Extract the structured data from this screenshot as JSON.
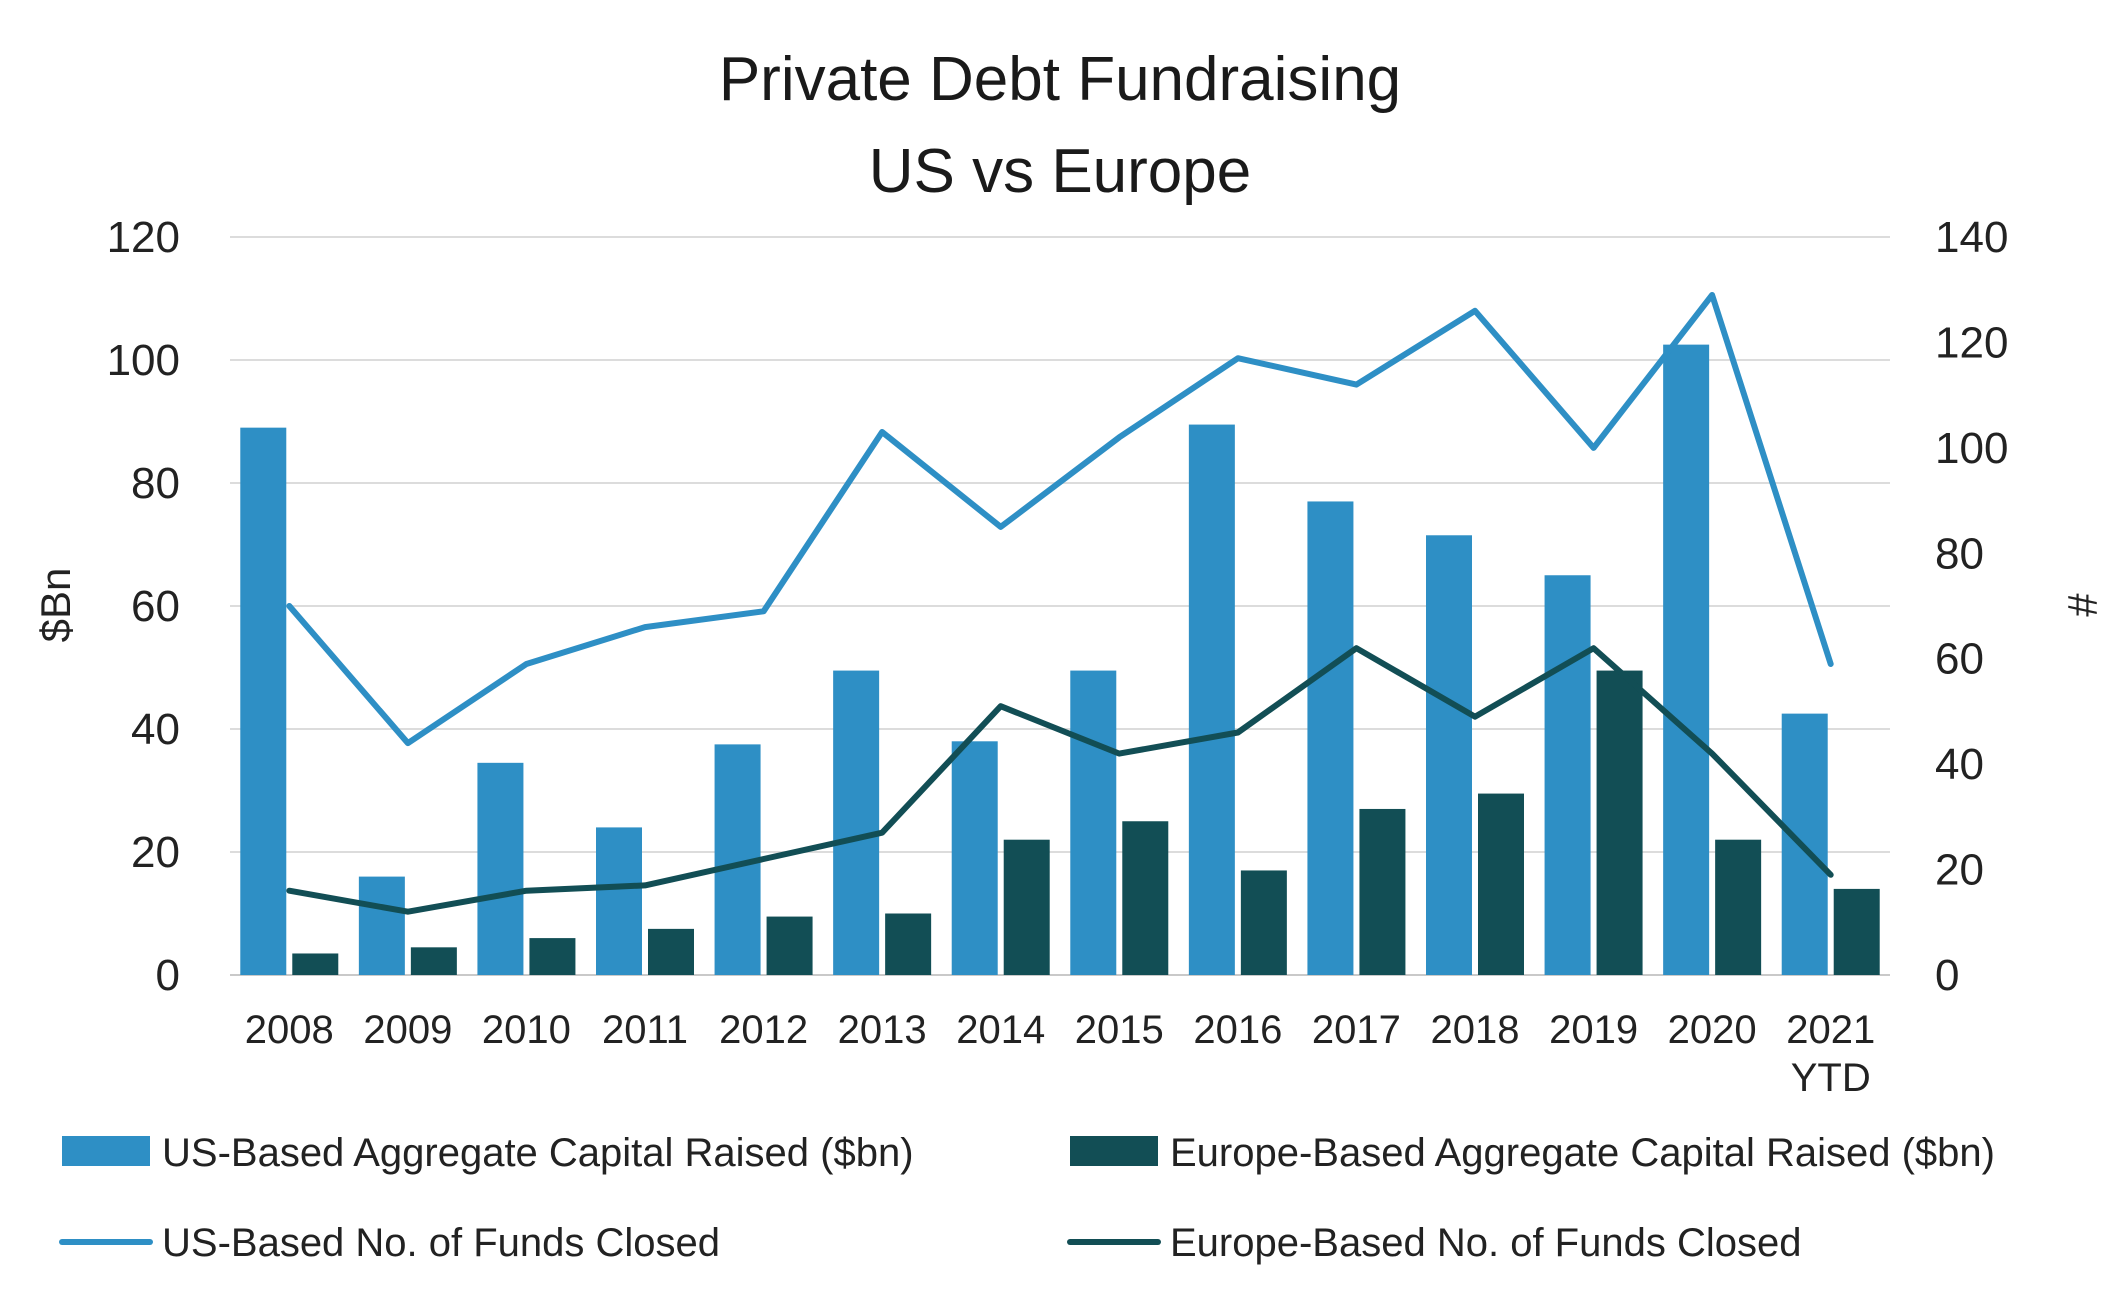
{
  "chart_data": {
    "type": "bar",
    "title": "Private Debt Fundraising",
    "subtitle": "US vs Europe",
    "categories": [
      "2008",
      "2009",
      "2010",
      "2011",
      "2012",
      "2013",
      "2014",
      "2015",
      "2016",
      "2017",
      "2018",
      "2019",
      "2020",
      "2021 YTD"
    ],
    "ylabel": "$Bn",
    "ylim": [
      0,
      120
    ],
    "yticks": [
      0,
      20,
      40,
      60,
      80,
      100,
      120
    ],
    "y2label": "#",
    "y2lim": [
      0,
      140
    ],
    "y2ticks": [
      0,
      20,
      40,
      60,
      80,
      100,
      120,
      140
    ],
    "grid": true,
    "legend_position": "bottom",
    "series": [
      {
        "name": "US-Based Aggregate Capital Raised ($bn)",
        "type": "bar",
        "axis": "left",
        "color": "#2e8fc5",
        "values": [
          89,
          16,
          34.5,
          24,
          37.5,
          49.5,
          38,
          49.5,
          89.5,
          77,
          71.5,
          65,
          102.5,
          42.5
        ]
      },
      {
        "name": "Europe-Based Aggregate Capital Raised ($bn)",
        "type": "bar",
        "axis": "left",
        "color": "#124e55",
        "values": [
          3.5,
          4.5,
          6,
          7.5,
          9.5,
          10,
          22,
          25,
          17,
          27,
          29.5,
          49.5,
          22,
          14
        ]
      },
      {
        "name": "US-Based No. of Funds Closed",
        "type": "line",
        "axis": "right",
        "color": "#2e8fc5",
        "values": [
          70,
          44,
          59,
          66,
          69,
          103,
          85,
          102,
          117,
          112,
          126,
          100,
          129,
          59
        ]
      },
      {
        "name": "Europe-Based No. of Funds Closed",
        "type": "line",
        "axis": "right",
        "color": "#124e55",
        "values": [
          16,
          12,
          16,
          17,
          22,
          27,
          51,
          42,
          46,
          62,
          49,
          62,
          42,
          19
        ]
      }
    ]
  }
}
